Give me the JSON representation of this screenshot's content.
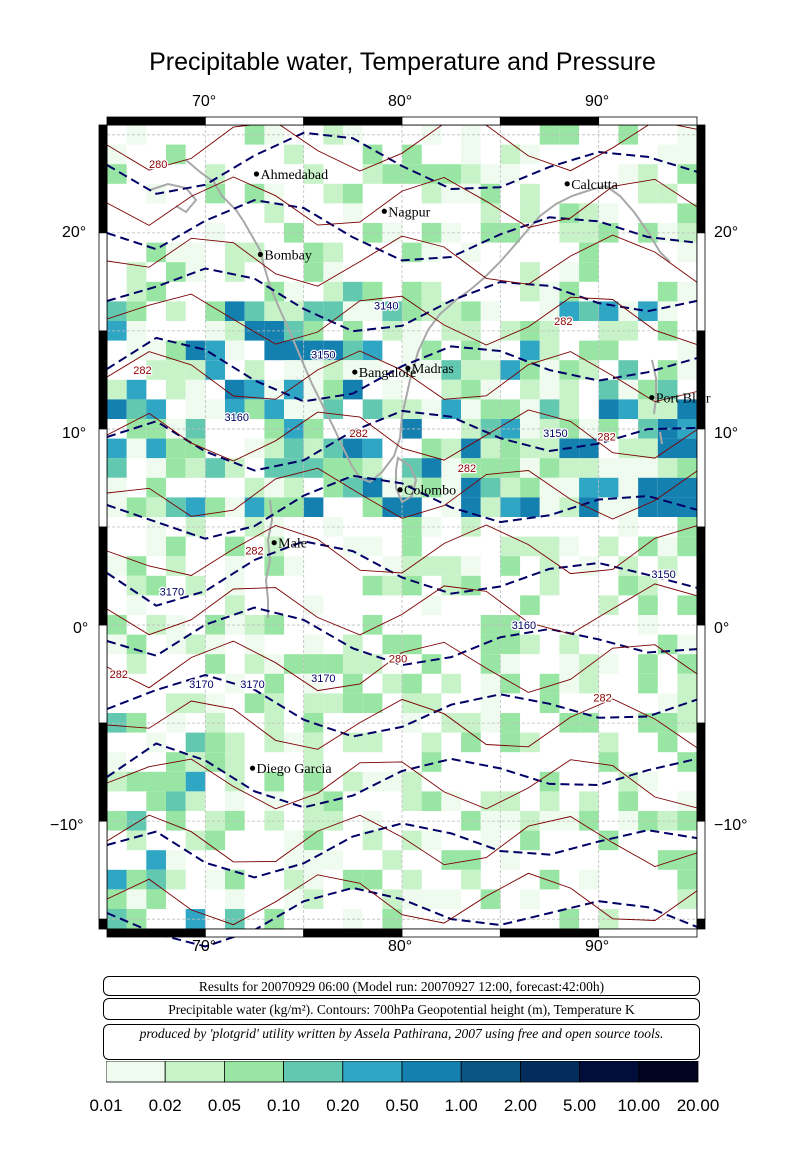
{
  "title": "Precipitable water, Temperature and Pressure",
  "axes": {
    "lon_ticks": [
      "70°",
      "80°",
      "90°"
    ],
    "lat_ticks": [
      "20°",
      "10°",
      "0°",
      "−10°"
    ],
    "lon_range": [
      65,
      95
    ],
    "lat_range": [
      -15.5,
      25.5
    ]
  },
  "map_data": {
    "type": "heatmap",
    "cities": [
      {
        "name": "Ahmedabad",
        "lon": 72.6,
        "lat": 23.0
      },
      {
        "name": "Calcutta",
        "lon": 88.4,
        "lat": 22.5
      },
      {
        "name": "Nagpur",
        "lon": 79.1,
        "lat": 21.1
      },
      {
        "name": "Bombay",
        "lon": 72.8,
        "lat": 18.9
      },
      {
        "name": "Madras",
        "lon": 80.3,
        "lat": 13.1
      },
      {
        "name": "Bangalore",
        "lon": 77.6,
        "lat": 12.9
      },
      {
        "name": "Port Blair",
        "lon": 92.7,
        "lat": 11.6
      },
      {
        "name": "Colombo",
        "lon": 79.9,
        "lat": 6.9
      },
      {
        "name": "Male",
        "lon": 73.5,
        "lat": 4.2
      },
      {
        "name": "Diego Garcia",
        "lon": 72.4,
        "lat": -7.3
      }
    ],
    "contour_labels": [
      {
        "text": "280",
        "lon": 67.6,
        "lat": 23.3,
        "color": "#8a0000"
      },
      {
        "text": "3140",
        "lon": 79.2,
        "lat": 16.1,
        "color": "#000066"
      },
      {
        "text": "282",
        "lon": 88.2,
        "lat": 15.3,
        "color": "#8a0000"
      },
      {
        "text": "3150",
        "lon": 76.0,
        "lat": 13.6,
        "color": "#000066"
      },
      {
        "text": "282",
        "lon": 66.8,
        "lat": 12.8,
        "color": "#8a0000"
      },
      {
        "text": "3160",
        "lon": 71.6,
        "lat": 10.4,
        "color": "#000066"
      },
      {
        "text": "282",
        "lon": 77.8,
        "lat": 9.6,
        "color": "#8a0000"
      },
      {
        "text": "3150",
        "lon": 87.8,
        "lat": 9.6,
        "color": "#000066"
      },
      {
        "text": "282",
        "lon": 90.4,
        "lat": 9.4,
        "color": "#8a0000"
      },
      {
        "text": "282",
        "lon": 83.3,
        "lat": 7.8,
        "color": "#8a0000"
      },
      {
        "text": "282",
        "lon": 72.5,
        "lat": 3.6,
        "color": "#8a0000"
      },
      {
        "text": "3170",
        "lon": 68.3,
        "lat": 1.5,
        "color": "#000066"
      },
      {
        "text": "3150",
        "lon": 93.3,
        "lat": 2.4,
        "color": "#000066"
      },
      {
        "text": "3160",
        "lon": 86.2,
        "lat": -0.2,
        "color": "#000066"
      },
      {
        "text": "282",
        "lon": 65.6,
        "lat": -2.7,
        "color": "#8a0000"
      },
      {
        "text": "3170",
        "lon": 69.8,
        "lat": -3.2,
        "color": "#000066"
      },
      {
        "text": "3170",
        "lon": 72.4,
        "lat": -3.2,
        "color": "#000066"
      },
      {
        "text": "3170",
        "lon": 76.0,
        "lat": -2.9,
        "color": "#000066"
      },
      {
        "text": "280",
        "lon": 79.8,
        "lat": -1.9,
        "color": "#8a0000"
      },
      {
        "text": "282",
        "lon": 90.2,
        "lat": -3.9,
        "color": "#8a0000"
      }
    ]
  },
  "info": {
    "line1": "Results for 20070929 06:00 (Model run: 20070927 12:00, forecast:42:00h)",
    "line2": "Precipitable water (kg/m²).  Contours: 700hPa Geopotential height (m), Temperature K",
    "line3": "produced by 'plotgrid' utility written by Assela Pathirana, 2007 using free and open source tools."
  },
  "colorbar": {
    "labels": [
      "0.01",
      "0.02",
      "0.05",
      "0.10",
      "0.20",
      "0.50",
      "1.00",
      "2.00",
      "5.00",
      "10.00",
      "20.00"
    ],
    "colors": [
      "#effbef",
      "#c8f2c8",
      "#99e6a4",
      "#62c8b0",
      "#2ea6c4",
      "#1480b0",
      "#0b5585",
      "#032d5c",
      "#020d3a",
      "#020520"
    ]
  }
}
